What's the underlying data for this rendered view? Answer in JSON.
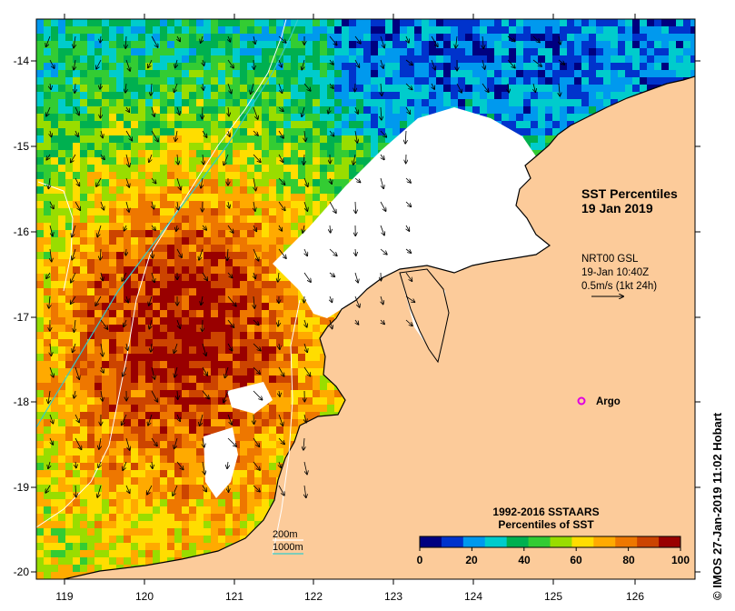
{
  "title": {
    "line1": "SST Percentiles",
    "line2": "19 Jan 2019"
  },
  "currents": {
    "product": "NRT00 GSL",
    "datetime": "19-Jan 10:40Z",
    "scale_label": "0.5m/s (1kt 24h)"
  },
  "argo": {
    "label": "Argo",
    "marker_color": "#e000e0"
  },
  "bathymetry_legend": {
    "contour_200m_label": "200m",
    "contour_1000m_label": "1000m",
    "color_200m": "#ffffff",
    "color_1000m": "#33cccc"
  },
  "colorbar": {
    "title_line1": "1992-2016 SSTAARS",
    "title_line2": "Percentiles of SST",
    "tick_labels": [
      "0",
      "20",
      "40",
      "60",
      "80",
      "100"
    ],
    "colors": [
      "#000080",
      "#0033cc",
      "#0099ee",
      "#00cccc",
      "#00b050",
      "#33cc33",
      "#99dd00",
      "#ffdd00",
      "#ffaa00",
      "#ee7700",
      "#cc4400",
      "#990000"
    ]
  },
  "axes": {
    "x_ticks": [
      "119",
      "120",
      "121",
      "122",
      "123",
      "124",
      "125",
      "126"
    ],
    "y_ticks": [
      "-14",
      "-15",
      "-16",
      "-17",
      "-18",
      "-19",
      "-20"
    ]
  },
  "credit": "IMOS 27-Jan-2019 11:02 Hobart",
  "credit_symbol": "©",
  "land_color": "#fccb9a"
}
